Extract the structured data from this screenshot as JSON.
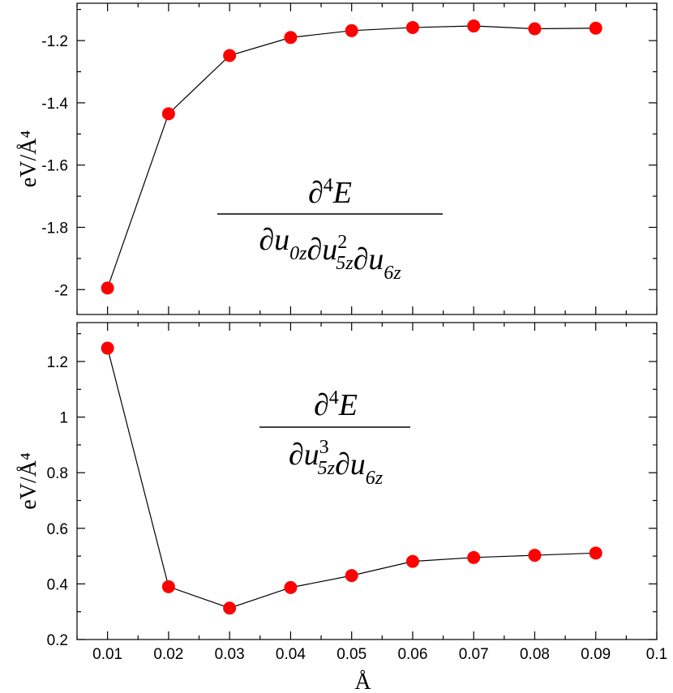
{
  "chart_data": [
    {
      "type": "line",
      "panel": "top",
      "x": [
        0.01,
        0.02,
        0.03,
        0.04,
        0.05,
        0.06,
        0.07,
        0.08,
        0.09
      ],
      "series": [
        {
          "values": [
            -1.995,
            -1.435,
            -1.248,
            -1.19,
            -1.168,
            -1.158,
            -1.153,
            -1.162,
            -1.16
          ],
          "color": "#ff0000"
        }
      ],
      "ylabel": "eV/Å⁴",
      "xlim": [
        0.005,
        0.1
      ],
      "ylim": [
        -2.08,
        -1.08
      ],
      "yticks": [
        -2,
        -1.8,
        -1.6,
        -1.4,
        -1.2
      ],
      "ytick_labels": [
        "-2",
        "-1.8",
        "-1.6",
        "-1.4",
        "-1.2"
      ],
      "annotation": {
        "numerator": {
          "symbol": "∂",
          "power": "4",
          "var": "E"
        },
        "denominator": [
          {
            "symbol": "∂",
            "var": "u",
            "sub": "0z",
            "sup": ""
          },
          {
            "symbol": "∂",
            "var": "u",
            "sub": "5z",
            "sup": "2"
          },
          {
            "symbol": "∂",
            "var": "u",
            "sub": "6z",
            "sup": ""
          }
        ]
      },
      "grid": false,
      "line_color": "#000000"
    },
    {
      "type": "line",
      "panel": "bottom",
      "x": [
        0.01,
        0.02,
        0.03,
        0.04,
        0.05,
        0.06,
        0.07,
        0.08,
        0.09
      ],
      "series": [
        {
          "values": [
            1.248,
            0.39,
            0.313,
            0.387,
            0.43,
            0.481,
            0.495,
            0.503,
            0.511
          ],
          "color": "#ff0000"
        }
      ],
      "xlabel": "Å",
      "ylabel": "eV/Å⁴",
      "xlim": [
        0.005,
        0.1
      ],
      "ylim": [
        0.2,
        1.34
      ],
      "xticks": [
        0.01,
        0.02,
        0.03,
        0.04,
        0.05,
        0.06,
        0.07,
        0.08,
        0.09,
        0.1
      ],
      "xtick_labels": [
        "0.01",
        "0.02",
        "0.03",
        "0.04",
        "0.05",
        "0.06",
        "0.07",
        "0.08",
        "0.09",
        "0.1"
      ],
      "yticks": [
        0.2,
        0.4,
        0.6,
        0.8,
        1,
        1.2
      ],
      "ytick_labels": [
        "0.2",
        "0.4",
        "0.6",
        "0.8",
        "1",
        "1.2"
      ],
      "annotation": {
        "numerator": {
          "symbol": "∂",
          "power": "4",
          "var": "E"
        },
        "denominator": [
          {
            "symbol": "∂",
            "var": "u",
            "sub": "5z",
            "sup": "3"
          },
          {
            "symbol": "∂",
            "var": "u",
            "sub": "6z",
            "sup": ""
          }
        ]
      },
      "grid": false,
      "line_color": "#000000"
    }
  ]
}
